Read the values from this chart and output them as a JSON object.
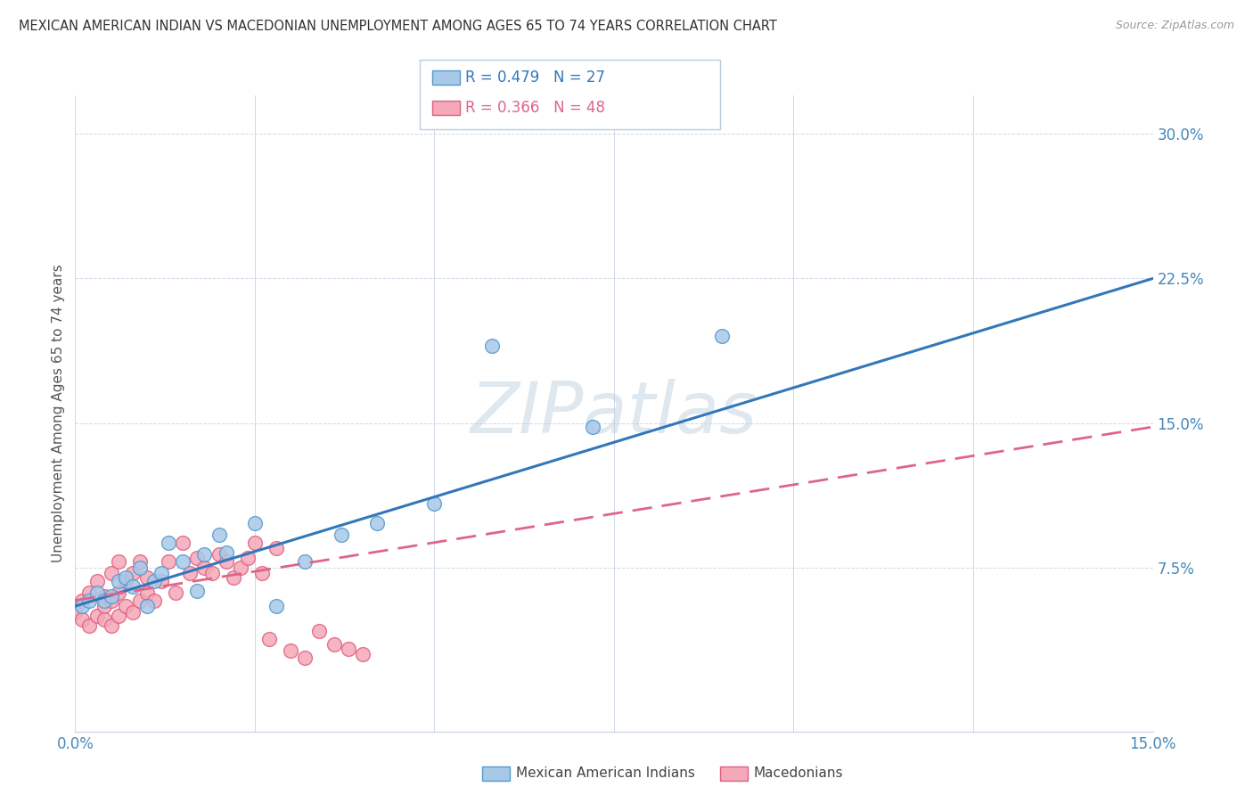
{
  "title": "MEXICAN AMERICAN INDIAN VS MACEDONIAN UNEMPLOYMENT AMONG AGES 65 TO 74 YEARS CORRELATION CHART",
  "source": "Source: ZipAtlas.com",
  "ylabel_label": "Unemployment Among Ages 65 to 74 years",
  "legend1_R": "0.479",
  "legend1_N": "27",
  "legend2_R": "0.366",
  "legend2_N": "48",
  "color_blue": "#a8c8e8",
  "color_pink": "#f4a8b8",
  "color_blue_dark": "#5599cc",
  "color_pink_dark": "#e06080",
  "watermark": "ZIPatlas",
  "mexican_x": [
    0.001,
    0.002,
    0.003,
    0.004,
    0.005,
    0.006,
    0.007,
    0.008,
    0.009,
    0.01,
    0.011,
    0.012,
    0.013,
    0.015,
    0.017,
    0.018,
    0.02,
    0.021,
    0.025,
    0.028,
    0.032,
    0.037,
    0.042,
    0.05,
    0.058,
    0.072,
    0.09
  ],
  "mexican_y": [
    0.055,
    0.058,
    0.062,
    0.058,
    0.06,
    0.068,
    0.07,
    0.065,
    0.075,
    0.055,
    0.068,
    0.072,
    0.088,
    0.078,
    0.063,
    0.082,
    0.092,
    0.083,
    0.098,
    0.055,
    0.078,
    0.092,
    0.098,
    0.108,
    0.19,
    0.148,
    0.195
  ],
  "macedonian_x": [
    0.0,
    0.001,
    0.001,
    0.002,
    0.002,
    0.003,
    0.003,
    0.004,
    0.004,
    0.004,
    0.005,
    0.005,
    0.005,
    0.006,
    0.006,
    0.006,
    0.007,
    0.007,
    0.008,
    0.008,
    0.009,
    0.009,
    0.01,
    0.01,
    0.011,
    0.012,
    0.013,
    0.014,
    0.015,
    0.016,
    0.017,
    0.018,
    0.019,
    0.02,
    0.021,
    0.022,
    0.023,
    0.024,
    0.025,
    0.026,
    0.027,
    0.028,
    0.03,
    0.032,
    0.034,
    0.036,
    0.038,
    0.04
  ],
  "macedonian_y": [
    0.052,
    0.048,
    0.058,
    0.045,
    0.062,
    0.05,
    0.068,
    0.055,
    0.048,
    0.06,
    0.045,
    0.058,
    0.072,
    0.05,
    0.062,
    0.078,
    0.055,
    0.068,
    0.052,
    0.072,
    0.058,
    0.078,
    0.062,
    0.07,
    0.058,
    0.068,
    0.078,
    0.062,
    0.088,
    0.072,
    0.08,
    0.075,
    0.072,
    0.082,
    0.078,
    0.07,
    0.075,
    0.08,
    0.088,
    0.072,
    0.038,
    0.085,
    0.032,
    0.028,
    0.042,
    0.035,
    0.033,
    0.03
  ],
  "xlim": [
    0.0,
    0.15
  ],
  "ylim": [
    -0.01,
    0.32
  ],
  "blue_line_x": [
    0.0,
    0.15
  ],
  "blue_line_y": [
    0.055,
    0.225
  ],
  "pink_line_x": [
    0.0,
    0.15
  ],
  "pink_line_y": [
    0.058,
    0.148
  ]
}
